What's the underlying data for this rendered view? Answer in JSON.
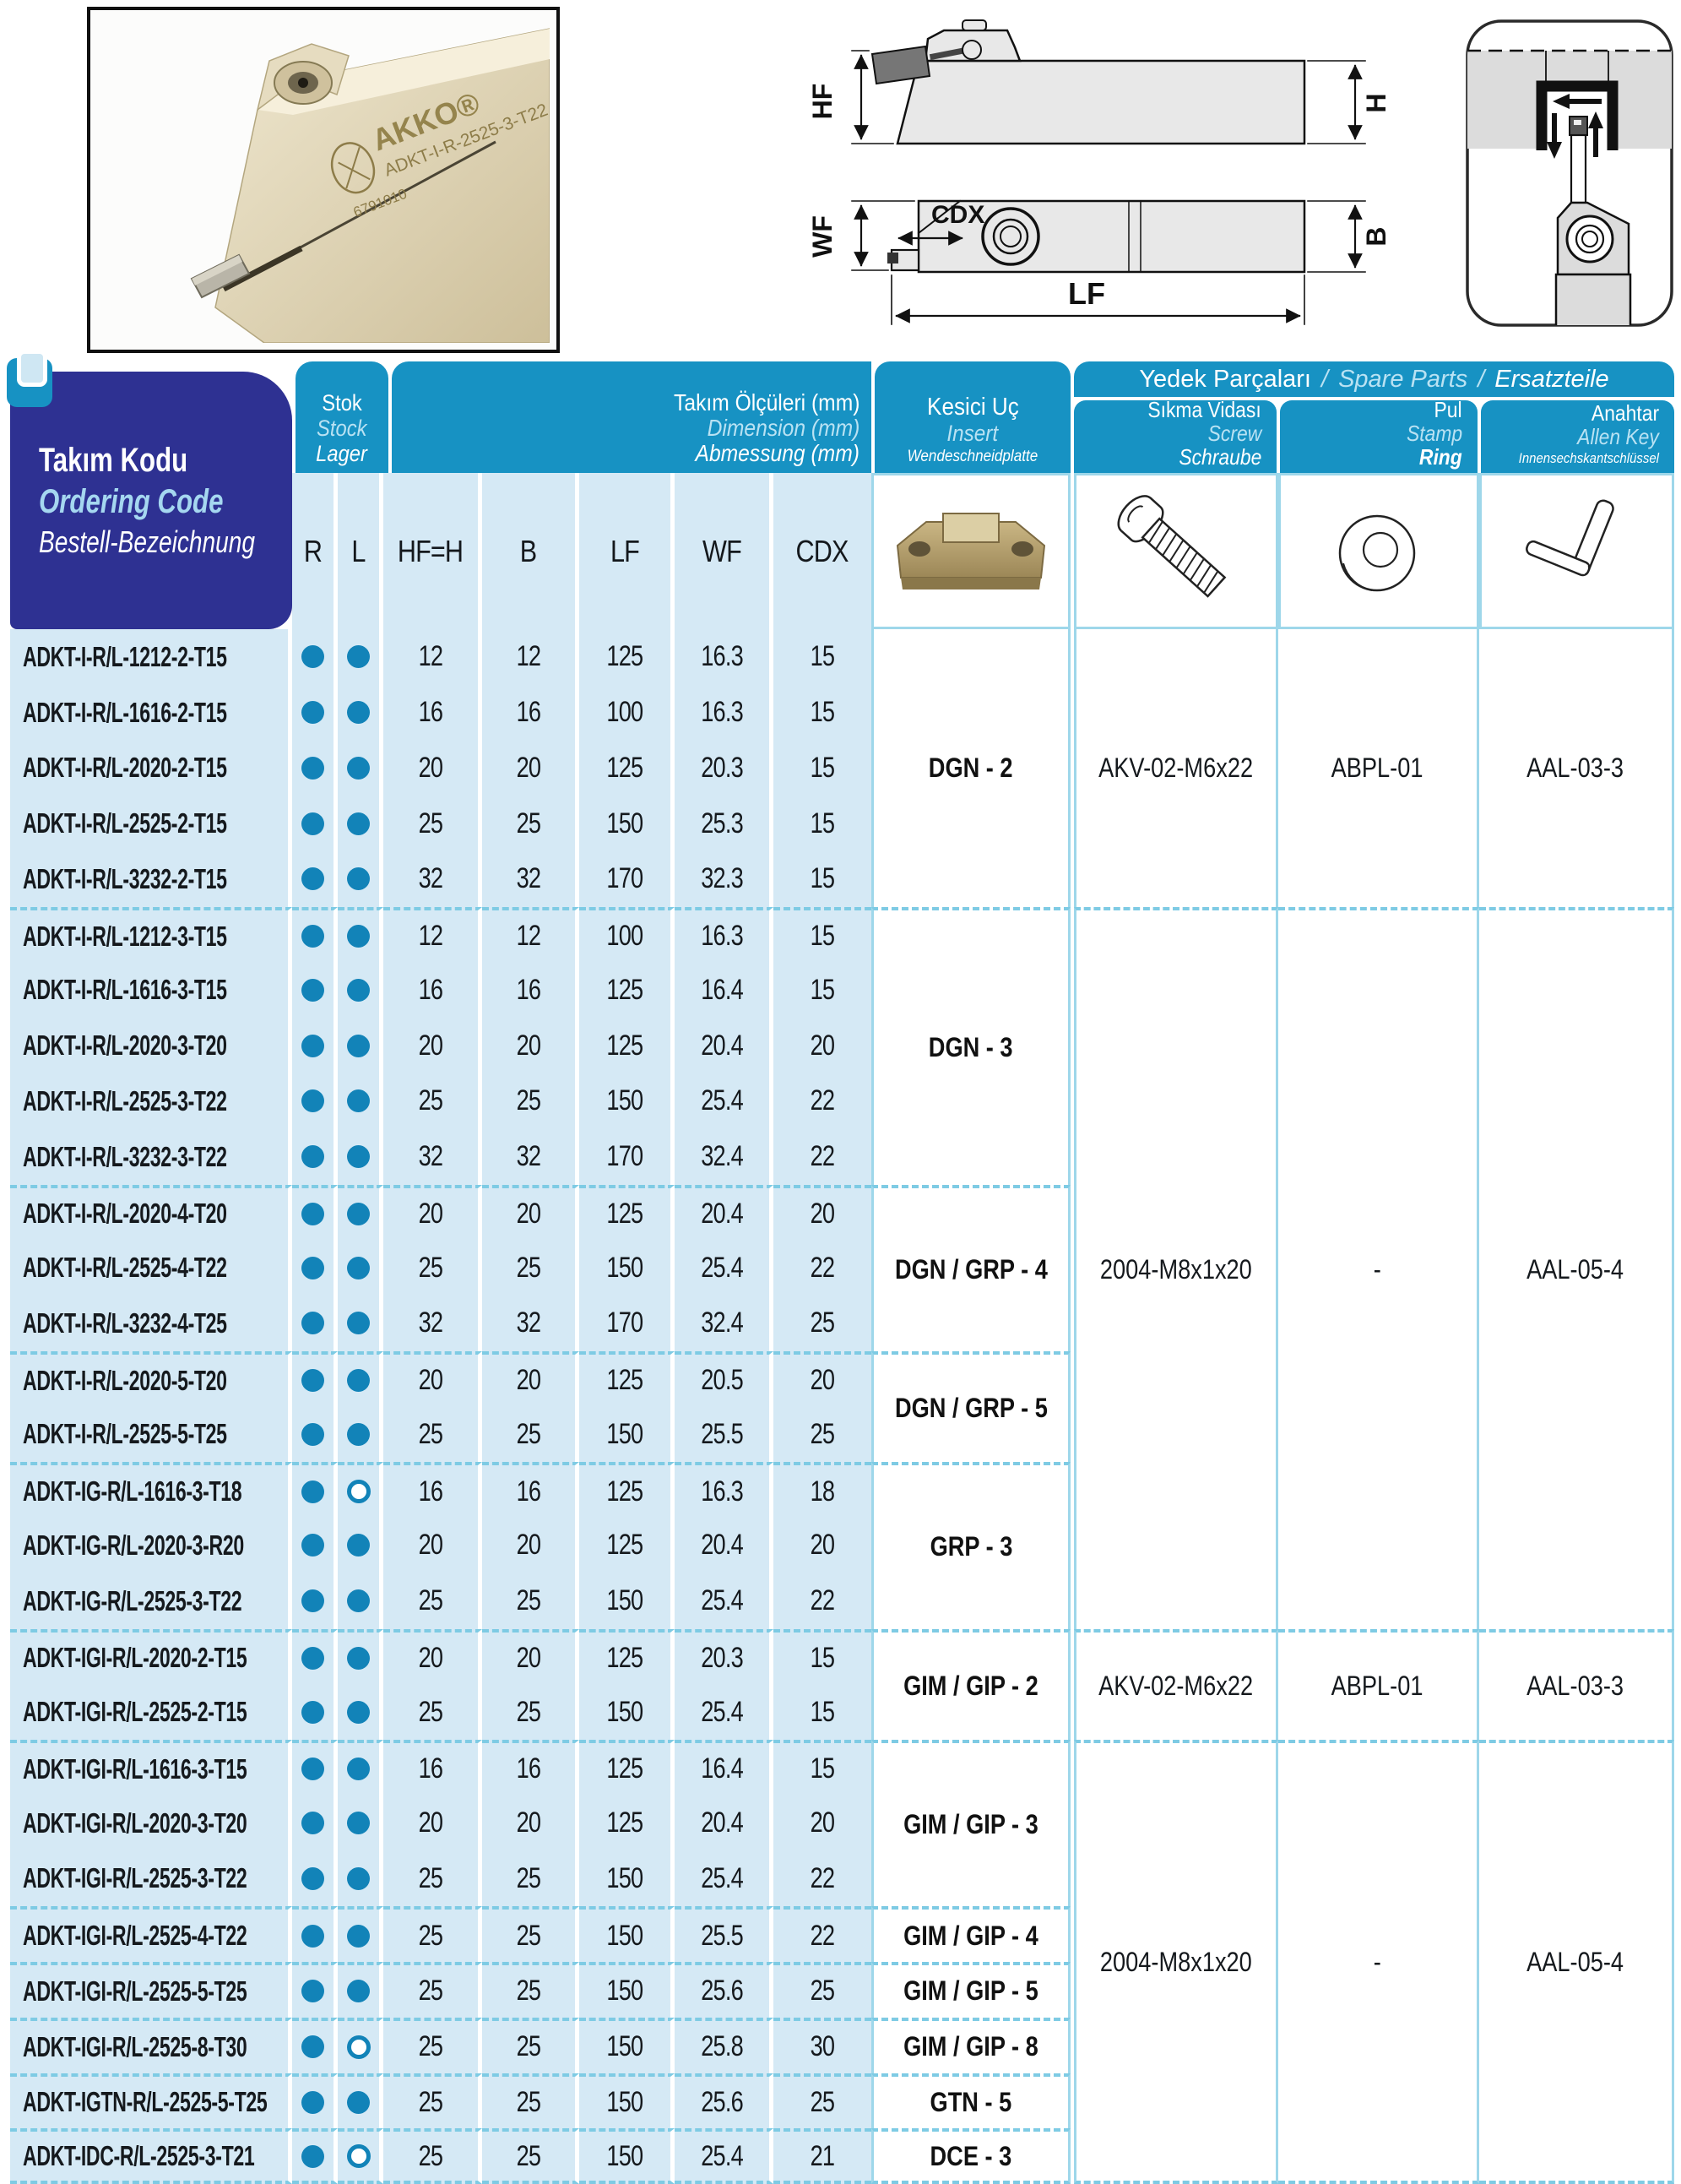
{
  "photo": {
    "brand": "AKKO®",
    "code": "ADKT-I-R-2525-3-T22",
    "serial": "6791010"
  },
  "diagram": {
    "hf": "HF",
    "h": "H",
    "wf": "WF",
    "b": "B",
    "lf": "LF",
    "cdx": "CDX"
  },
  "header": {
    "sep": "/",
    "ordering": {
      "tr": "Takım Kodu",
      "en": "Ordering Code",
      "de": "Bestell-Bezeichnung"
    },
    "stock": {
      "tr": "Stok",
      "en": "Stock",
      "de": "Lager"
    },
    "dimensions": {
      "tr": "Takım Ölçüleri (mm)",
      "en": "Dimension (mm)",
      "de": "Abmessung (mm)"
    },
    "insert": {
      "tr": "Kesici Uç",
      "en": "Insert",
      "de": "Wendeschneidplatte"
    },
    "spare": {
      "tr": "Yedek Parçaları",
      "en": "Spare Parts",
      "de": "Ersatzteile"
    },
    "screw": {
      "tr": "Sıkma Vidası",
      "en": "Screw",
      "de": "Schraube"
    },
    "ring": {
      "tr": "Pul",
      "en": "Stamp",
      "de": "Ring"
    },
    "key": {
      "tr": "Anahtar",
      "en": "Allen Key",
      "de": "Innensechskantschlüssel"
    },
    "columns": [
      "R",
      "L",
      "HF=H",
      "B",
      "LF",
      "WF",
      "CDX"
    ]
  },
  "colors": {
    "teal": "#1792c3",
    "navy": "#2e3192",
    "cell": "#d5e9f5",
    "pale": "#b9e2f3",
    "cyan_line": "#9ed7ea",
    "dash": "#7ecbe4",
    "dot": "#1283b8"
  },
  "table": {
    "rows": [
      {
        "code": "ADKT-I-R/L-1212-2-T15",
        "r": true,
        "l": true,
        "hf": "12",
        "b": "12",
        "lf": "125",
        "wf": "16.3",
        "cdx": "15"
      },
      {
        "code": "ADKT-I-R/L-1616-2-T15",
        "r": true,
        "l": true,
        "hf": "16",
        "b": "16",
        "lf": "100",
        "wf": "16.3",
        "cdx": "15"
      },
      {
        "code": "ADKT-I-R/L-2020-2-T15",
        "r": true,
        "l": true,
        "hf": "20",
        "b": "20",
        "lf": "125",
        "wf": "20.3",
        "cdx": "15"
      },
      {
        "code": "ADKT-I-R/L-2525-2-T15",
        "r": true,
        "l": true,
        "hf": "25",
        "b": "25",
        "lf": "150",
        "wf": "25.3",
        "cdx": "15"
      },
      {
        "code": "ADKT-I-R/L-3232-2-T15",
        "r": true,
        "l": true,
        "hf": "32",
        "b": "32",
        "lf": "170",
        "wf": "32.3",
        "cdx": "15"
      },
      {
        "code": "ADKT-I-R/L-1212-3-T15",
        "r": true,
        "l": true,
        "hf": "12",
        "b": "12",
        "lf": "100",
        "wf": "16.3",
        "cdx": "15"
      },
      {
        "code": "ADKT-I-R/L-1616-3-T15",
        "r": true,
        "l": true,
        "hf": "16",
        "b": "16",
        "lf": "125",
        "wf": "16.4",
        "cdx": "15"
      },
      {
        "code": "ADKT-I-R/L-2020-3-T20",
        "r": true,
        "l": true,
        "hf": "20",
        "b": "20",
        "lf": "125",
        "wf": "20.4",
        "cdx": "20"
      },
      {
        "code": "ADKT-I-R/L-2525-3-T22",
        "r": true,
        "l": true,
        "hf": "25",
        "b": "25",
        "lf": "150",
        "wf": "25.4",
        "cdx": "22"
      },
      {
        "code": "ADKT-I-R/L-3232-3-T22",
        "r": true,
        "l": true,
        "hf": "32",
        "b": "32",
        "lf": "170",
        "wf": "32.4",
        "cdx": "22"
      },
      {
        "code": "ADKT-I-R/L-2020-4-T20",
        "r": true,
        "l": true,
        "hf": "20",
        "b": "20",
        "lf": "125",
        "wf": "20.4",
        "cdx": "20"
      },
      {
        "code": "ADKT-I-R/L-2525-4-T22",
        "r": true,
        "l": true,
        "hf": "25",
        "b": "25",
        "lf": "150",
        "wf": "25.4",
        "cdx": "22"
      },
      {
        "code": "ADKT-I-R/L-3232-4-T25",
        "r": true,
        "l": true,
        "hf": "32",
        "b": "32",
        "lf": "170",
        "wf": "32.4",
        "cdx": "25"
      },
      {
        "code": "ADKT-I-R/L-2020-5-T20",
        "r": true,
        "l": true,
        "hf": "20",
        "b": "20",
        "lf": "125",
        "wf": "20.5",
        "cdx": "20"
      },
      {
        "code": "ADKT-I-R/L-2525-5-T25",
        "r": true,
        "l": true,
        "hf": "25",
        "b": "25",
        "lf": "150",
        "wf": "25.5",
        "cdx": "25"
      },
      {
        "code": "ADKT-IG-R/L-1616-3-T18",
        "r": true,
        "l": false,
        "hf": "16",
        "b": "16",
        "lf": "125",
        "wf": "16.3",
        "cdx": "18"
      },
      {
        "code": "ADKT-IG-R/L-2020-3-R20",
        "r": true,
        "l": true,
        "hf": "20",
        "b": "20",
        "lf": "125",
        "wf": "20.4",
        "cdx": "20"
      },
      {
        "code": "ADKT-IG-R/L-2525-3-T22",
        "r": true,
        "l": true,
        "hf": "25",
        "b": "25",
        "lf": "150",
        "wf": "25.4",
        "cdx": "22"
      },
      {
        "code": "ADKT-IGI-R/L-2020-2-T15",
        "r": true,
        "l": true,
        "hf": "20",
        "b": "20",
        "lf": "125",
        "wf": "20.3",
        "cdx": "15"
      },
      {
        "code": "ADKT-IGI-R/L-2525-2-T15",
        "r": true,
        "l": true,
        "hf": "25",
        "b": "25",
        "lf": "150",
        "wf": "25.4",
        "cdx": "15"
      },
      {
        "code": "ADKT-IGI-R/L-1616-3-T15",
        "r": true,
        "l": true,
        "hf": "16",
        "b": "16",
        "lf": "125",
        "wf": "16.4",
        "cdx": "15"
      },
      {
        "code": "ADKT-IGI-R/L-2020-3-T20",
        "r": true,
        "l": true,
        "hf": "20",
        "b": "20",
        "lf": "125",
        "wf": "20.4",
        "cdx": "20"
      },
      {
        "code": "ADKT-IGI-R/L-2525-3-T22",
        "r": true,
        "l": true,
        "hf": "25",
        "b": "25",
        "lf": "150",
        "wf": "25.4",
        "cdx": "22"
      },
      {
        "code": "ADKT-IGI-R/L-2525-4-T22",
        "r": true,
        "l": true,
        "hf": "25",
        "b": "25",
        "lf": "150",
        "wf": "25.5",
        "cdx": "22"
      },
      {
        "code": "ADKT-IGI-R/L-2525-5-T25",
        "r": true,
        "l": true,
        "hf": "25",
        "b": "25",
        "lf": "150",
        "wf": "25.6",
        "cdx": "25"
      },
      {
        "code": "ADKT-IGI-R/L-2525-8-T30",
        "r": true,
        "l": false,
        "hf": "25",
        "b": "25",
        "lf": "150",
        "wf": "25.8",
        "cdx": "30"
      },
      {
        "code": "ADKT-IGTN-R/L-2525-5-T25",
        "r": true,
        "l": true,
        "hf": "25",
        "b": "25",
        "lf": "150",
        "wf": "25.6",
        "cdx": "25"
      },
      {
        "code": "ADKT-IDC-R/L-2525-3-T21",
        "r": true,
        "l": false,
        "hf": "25",
        "b": "25",
        "lf": "150",
        "wf": "25.4",
        "cdx": "21"
      }
    ],
    "insert_groups": [
      {
        "label": "DGN - 2",
        "start": 1,
        "span": 5
      },
      {
        "label": "DGN - 3",
        "start": 6,
        "span": 5
      },
      {
        "label": "DGN / GRP - 4",
        "start": 11,
        "span": 3
      },
      {
        "label": "DGN / GRP - 5",
        "start": 14,
        "span": 2
      },
      {
        "label": "GRP - 3",
        "start": 16,
        "span": 3
      },
      {
        "label": "GIM / GIP - 2",
        "start": 19,
        "span": 2
      },
      {
        "label": "GIM / GIP - 3",
        "start": 21,
        "span": 3
      },
      {
        "label": "GIM / GIP - 4",
        "start": 24,
        "span": 1
      },
      {
        "label": "GIM / GIP - 5",
        "start": 25,
        "span": 1
      },
      {
        "label": "GIM / GIP - 8",
        "start": 26,
        "span": 1
      },
      {
        "label": "GTN - 5",
        "start": 27,
        "span": 1
      },
      {
        "label": "DCE - 3",
        "start": 28,
        "span": 1
      }
    ],
    "spare_groups": [
      {
        "screw": "AKV-02-M6x22",
        "ring": "ABPL-01",
        "key": "AAL-03-3",
        "start": 1,
        "span": 5
      },
      {
        "screw": "2004-M8x1x20",
        "ring": "-",
        "key": "AAL-05-4",
        "start": 6,
        "span": 13
      },
      {
        "screw": "AKV-02-M6x22",
        "ring": "ABPL-01",
        "key": "AAL-03-3",
        "start": 19,
        "span": 2
      },
      {
        "screw": "2004-M8x1x20",
        "ring": "-",
        "key": "AAL-05-4",
        "start": 21,
        "span": 8
      }
    ]
  }
}
